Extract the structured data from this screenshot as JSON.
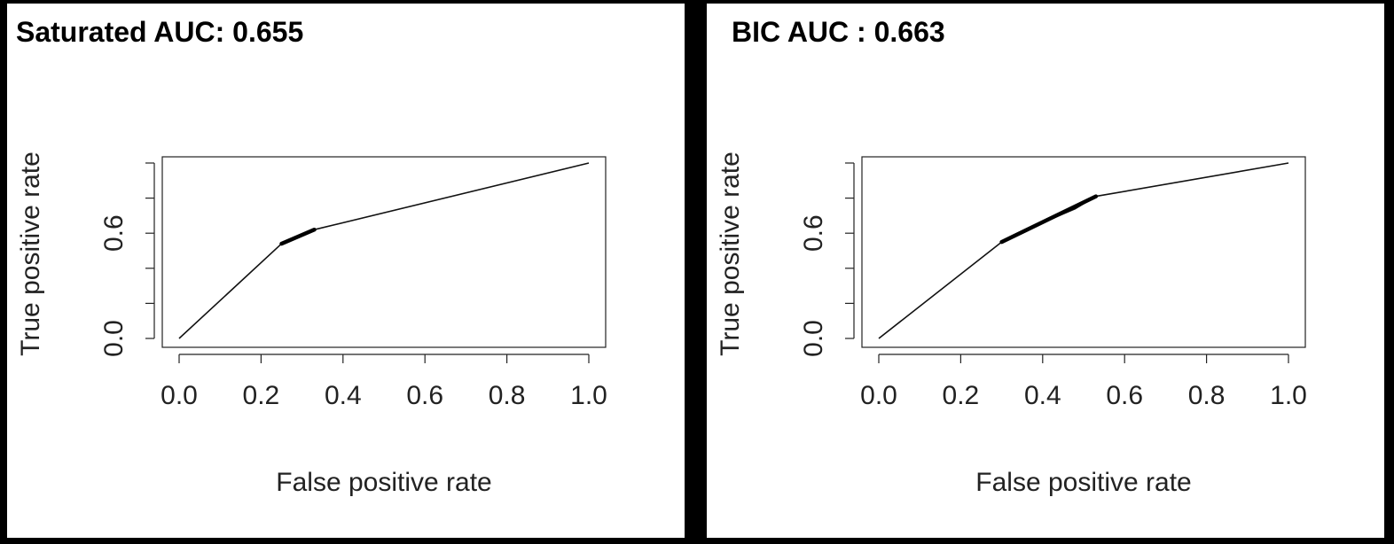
{
  "chart_data": [
    {
      "type": "line",
      "title": "Saturated AUC: 0.655",
      "xlabel": "False positive rate",
      "ylabel": "True positive rate",
      "xlim": [
        0,
        1
      ],
      "ylim": [
        0,
        1
      ],
      "x_ticks": [
        "0.0",
        "0.2",
        "0.4",
        "0.6",
        "0.8",
        "1.0"
      ],
      "y_ticks_labeled": [
        "0.0",
        "0.6"
      ],
      "y_ticks": [
        0,
        0.2,
        0.4,
        0.6,
        0.8,
        1.0
      ],
      "grid": false,
      "series": [
        {
          "x": [
            0,
            0.25,
            0.27,
            0.29,
            0.31,
            0.33,
            1.0
          ],
          "y": [
            0,
            0.54,
            0.56,
            0.58,
            0.6,
            0.62,
            1.0
          ],
          "thick_segment": [
            [
              0.25,
              0.54
            ],
            [
              0.33,
              0.62
            ]
          ]
        }
      ]
    },
    {
      "type": "line",
      "title": "BIC AUC : 0.663",
      "xlabel": "False positive rate",
      "ylabel": "True positive rate",
      "xlim": [
        0,
        1
      ],
      "ylim": [
        0,
        1
      ],
      "x_ticks": [
        "0.0",
        "0.2",
        "0.4",
        "0.6",
        "0.8",
        "1.0"
      ],
      "y_ticks_labeled": [
        "0.0",
        "0.6"
      ],
      "y_ticks": [
        0,
        0.2,
        0.4,
        0.6,
        0.8,
        1.0
      ],
      "grid": false,
      "series": [
        {
          "x": [
            0,
            0.3,
            0.36,
            0.42,
            0.48,
            0.53,
            1.0
          ],
          "y": [
            0,
            0.55,
            0.61,
            0.68,
            0.74,
            0.81,
            1.0
          ],
          "thick_segment": [
            [
              0.3,
              0.55
            ],
            [
              0.53,
              0.81
            ]
          ]
        }
      ]
    }
  ]
}
